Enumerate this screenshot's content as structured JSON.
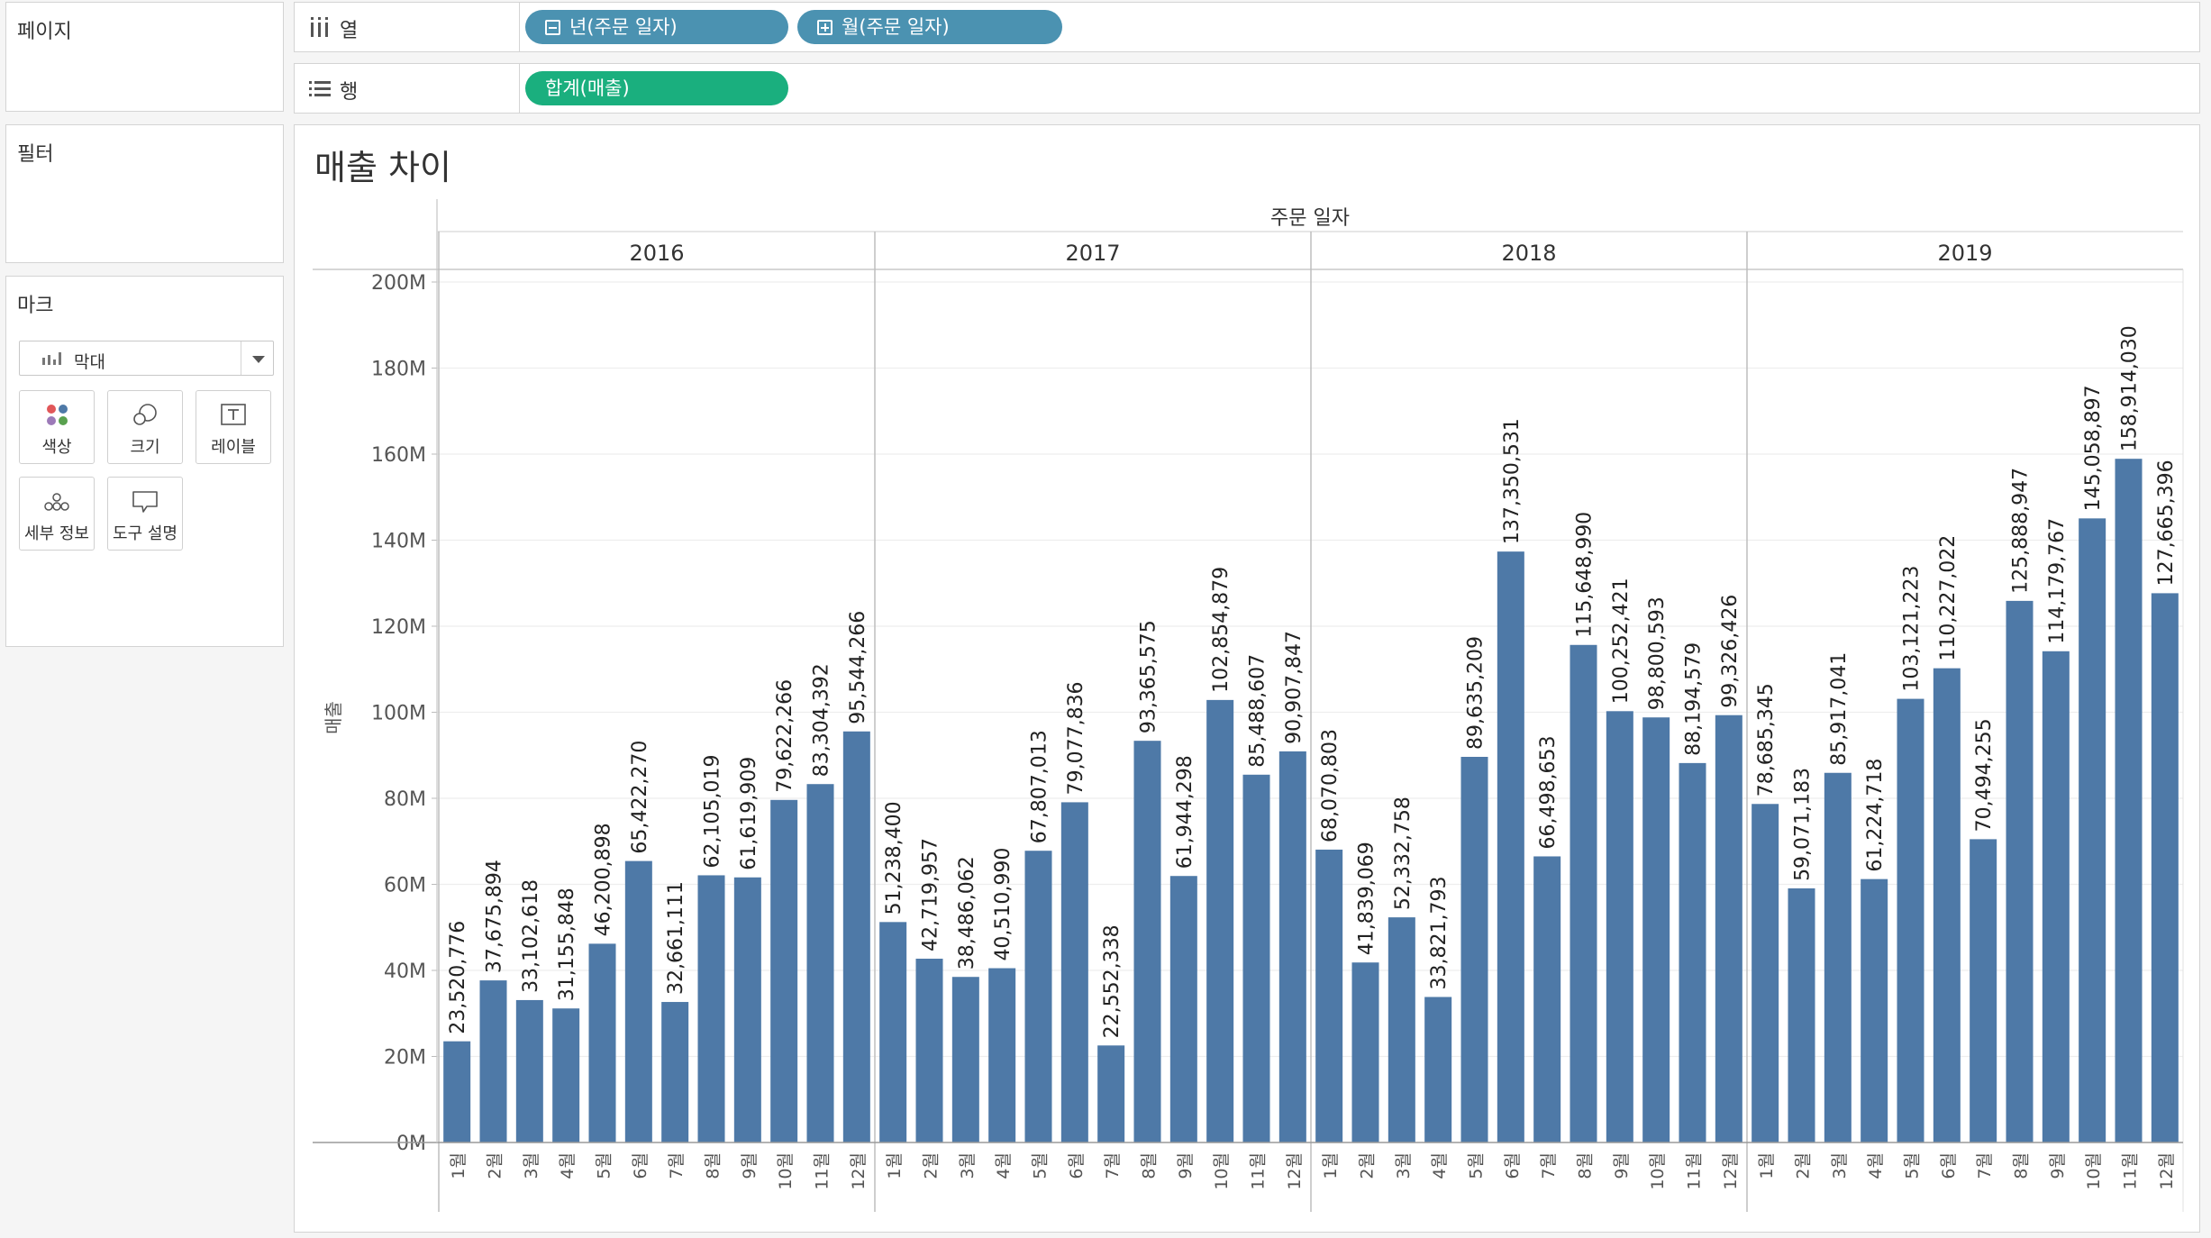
{
  "pages_card": {
    "title": "페이지"
  },
  "filters_card": {
    "title": "필터"
  },
  "marks_card": {
    "title": "마크",
    "mark_type": "막대",
    "buttons": [
      {
        "label": "색상",
        "icon": "color-icon"
      },
      {
        "label": "크기",
        "icon": "size-icon"
      },
      {
        "label": "레이블",
        "icon": "label-icon"
      },
      {
        "label": "세부 정보",
        "icon": "detail-icon"
      },
      {
        "label": "도구 설명",
        "icon": "tooltip-icon"
      }
    ]
  },
  "columns_shelf": {
    "label": "열",
    "pills": [
      {
        "text": "년(주문 일자)",
        "state": "collapse"
      },
      {
        "text": "월(주문 일자)",
        "state": "expand"
      }
    ]
  },
  "rows_shelf": {
    "label": "행",
    "pills": [
      {
        "text": "합계(매출)"
      }
    ]
  },
  "colors": {
    "bar": "#4e79a7",
    "pill_dimension": "#4b92b1",
    "pill_measure": "#1aaf7e"
  },
  "chart_data": {
    "type": "bar",
    "title": "매출 차이",
    "column_header": "주문 일자",
    "ylabel": "매출",
    "ylim": [
      0,
      200000000
    ],
    "y_ticks": [
      "0M",
      "20M",
      "40M",
      "60M",
      "80M",
      "100M",
      "120M",
      "140M",
      "160M",
      "180M",
      "200M"
    ],
    "grid": true,
    "years": [
      "2016",
      "2017",
      "2018",
      "2019"
    ],
    "months": [
      "1월",
      "2월",
      "3월",
      "4월",
      "5월",
      "6월",
      "7월",
      "8월",
      "9월",
      "10월",
      "11월",
      "12월"
    ],
    "series": [
      {
        "year": "2016",
        "values": [
          23520776,
          37675894,
          33102618,
          31155848,
          46200898,
          65422270,
          32661111,
          62105019,
          61619909,
          79622266,
          83304392,
          95544266
        ],
        "labels": [
          "23,520,776",
          "37,675,894",
          "33,102,618",
          "31,155,848",
          "46,200,898",
          "65,422,270",
          "32,661,111",
          "62,105,019",
          "61,619,909",
          "79,622,266",
          "83,304,392",
          "95,544,266"
        ]
      },
      {
        "year": "2017",
        "values": [
          51238400,
          42719957,
          38486062,
          40510990,
          67807013,
          79077836,
          22552338,
          93365575,
          61944298,
          102854879,
          85488607,
          90907847
        ],
        "labels": [
          "51,238,400",
          "42,719,957",
          "38,486,062",
          "40,510,990",
          "67,807,013",
          "79,077,836",
          "22,552,338",
          "93,365,575",
          "61,944,298",
          "102,854,879",
          "85,488,607",
          "90,907,847"
        ]
      },
      {
        "year": "2018",
        "values": [
          68070803,
          41839069,
          52332758,
          33821793,
          89635209,
          137350531,
          66498653,
          115648990,
          100252421,
          98800593,
          88194579,
          99326426
        ],
        "labels": [
          "68,070,803",
          "41,839,069",
          "52,332,758",
          "33,821,793",
          "89,635,209",
          "137,350,531",
          "66,498,653",
          "115,648,990",
          "100,252,421",
          "98,800,593",
          "88,194,579",
          "99,326,426"
        ]
      },
      {
        "year": "2019",
        "values": [
          78685345,
          59071183,
          85917041,
          61224718,
          103121223,
          110227022,
          70494255,
          125888947,
          114179767,
          145058897,
          158914030,
          127665396
        ],
        "labels": [
          "78,685,345",
          "59,071,183",
          "85,917,041",
          "61,224,718",
          "103,121,223",
          "110,227,022",
          "70,494,255",
          "125,888,947",
          "114,179,767",
          "145,058,897",
          "158,914,030",
          "127,665,396"
        ]
      }
    ]
  }
}
